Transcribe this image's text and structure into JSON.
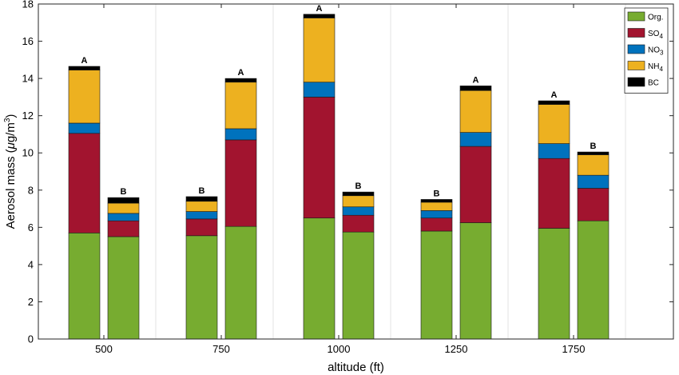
{
  "chart_data": {
    "type": "bar",
    "stacked": true,
    "xlabel": "altitude (ft)",
    "ylabel_parts": {
      "prefix": "Aerosol mass (",
      "mu": "μ",
      "unit": "g/m",
      "sup": "3",
      "suffix": ")"
    },
    "ylim": [
      0,
      18
    ],
    "yticks": [
      0,
      2,
      4,
      6,
      8,
      10,
      12,
      14,
      16,
      18
    ],
    "xtick_labels": [
      "500",
      "750",
      "1000",
      "1250",
      "1750"
    ],
    "grid": "vertical",
    "legend_position": "top-right",
    "series": [
      {
        "name": "Org.",
        "sub": "",
        "color": "#77AC30"
      },
      {
        "name": "SO",
        "sub": "4",
        "color": "#A2142F"
      },
      {
        "name": "NO",
        "sub": "3",
        "color": "#0072BD"
      },
      {
        "name": "NH",
        "sub": "4",
        "color": "#EDB120"
      },
      {
        "name": "BC",
        "sub": "",
        "color": "#000000"
      }
    ],
    "bars": [
      {
        "group": "500",
        "label": "A",
        "values": [
          5.7,
          5.35,
          0.55,
          2.85,
          0.2
        ]
      },
      {
        "group": "500",
        "label": "B",
        "values": [
          5.5,
          0.85,
          0.4,
          0.55,
          0.3
        ]
      },
      {
        "group": "750",
        "label": "B",
        "values": [
          5.55,
          0.9,
          0.4,
          0.55,
          0.25
        ]
      },
      {
        "group": "750",
        "label": "A",
        "values": [
          6.05,
          4.65,
          0.6,
          2.5,
          0.2
        ]
      },
      {
        "group": "1000",
        "label": "A",
        "values": [
          6.5,
          6.5,
          0.8,
          3.45,
          0.2
        ]
      },
      {
        "group": "1000",
        "label": "B",
        "values": [
          5.75,
          0.9,
          0.45,
          0.6,
          0.2
        ]
      },
      {
        "group": "1250",
        "label": "B",
        "values": [
          5.8,
          0.7,
          0.4,
          0.45,
          0.15
        ]
      },
      {
        "group": "1250",
        "label": "A",
        "values": [
          6.25,
          4.1,
          0.75,
          2.25,
          0.25
        ]
      },
      {
        "group": "1750",
        "label": "A",
        "values": [
          5.95,
          3.75,
          0.8,
          2.1,
          0.2
        ]
      },
      {
        "group": "1750",
        "label": "B",
        "values": [
          6.35,
          1.75,
          0.7,
          1.1,
          0.15
        ]
      }
    ]
  }
}
